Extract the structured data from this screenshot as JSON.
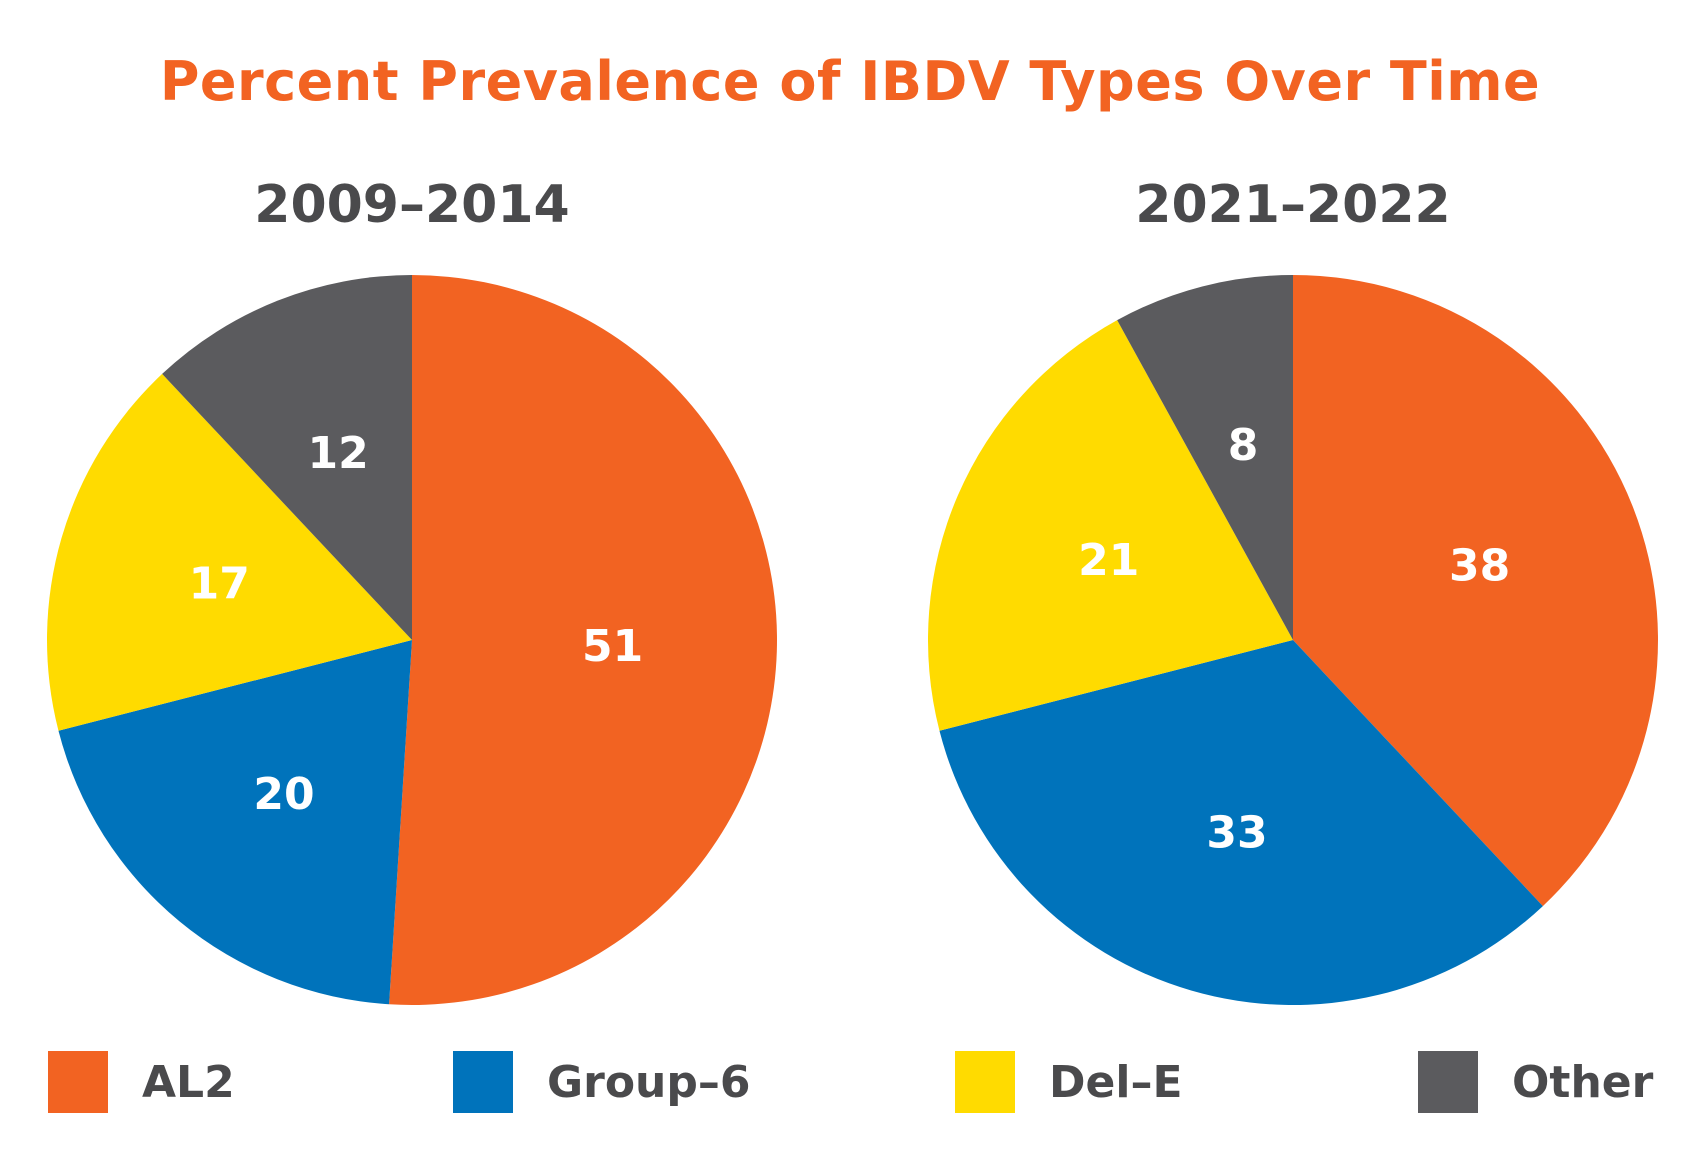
{
  "title": "Percent Prevalence of IBDV Types Over Time",
  "colors": {
    "AL2": "#f26322",
    "Group-6": "#0073bb",
    "Del-E": "#ffdb00",
    "Other": "#5b5b5e"
  },
  "chart_data": [
    {
      "type": "pie",
      "title": "2009–2014",
      "categories": [
        "AL2",
        "Group-6",
        "Del-E",
        "Other"
      ],
      "values": [
        51,
        20,
        17,
        12
      ],
      "labels": [
        "51",
        "20",
        "17",
        "12"
      ]
    },
    {
      "type": "pie",
      "title": "2021–2022",
      "categories": [
        "AL2",
        "Group-6",
        "Del-E",
        "Other"
      ],
      "values": [
        38,
        33,
        21,
        8
      ],
      "labels": [
        "38",
        "33",
        "21",
        "8"
      ]
    }
  ],
  "legend": {
    "items": [
      {
        "label": "AL2",
        "color": "#f26322"
      },
      {
        "label": "Group–6",
        "color": "#0073bb"
      },
      {
        "label": "Del–E",
        "color": "#ffdb00"
      },
      {
        "label": "Other",
        "color": "#5b5b5e"
      }
    ]
  }
}
